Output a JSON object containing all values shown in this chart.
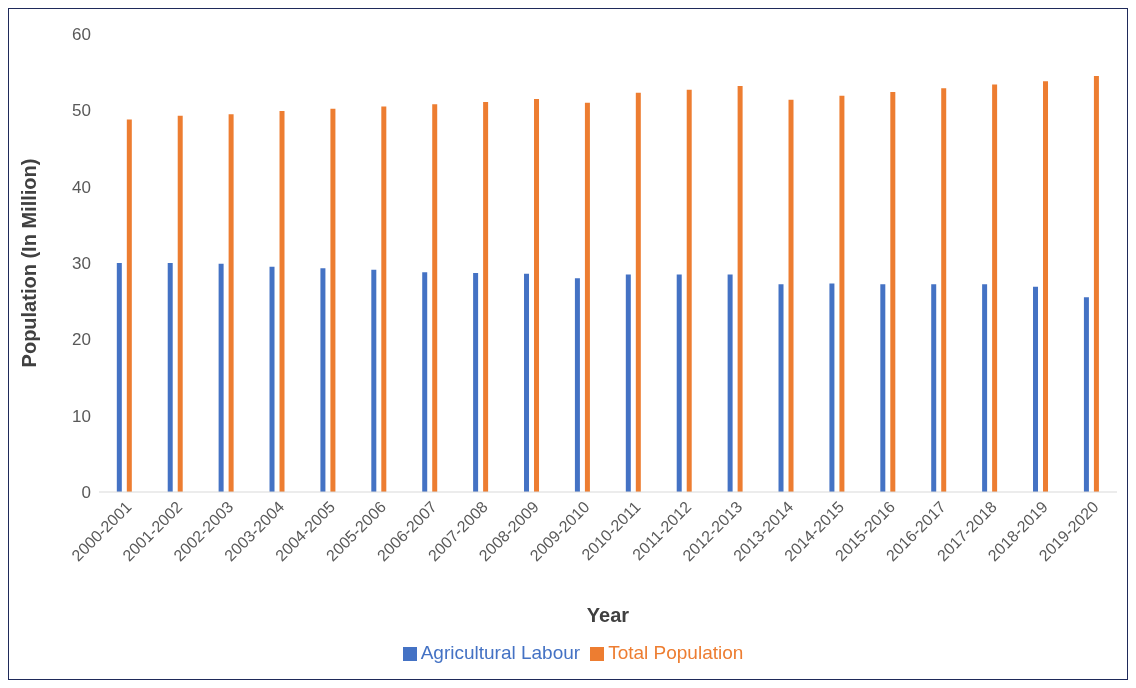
{
  "chart_data": {
    "type": "bar",
    "xlabel": "Year",
    "ylabel": "Population (In Million)",
    "categories": [
      "2000-2001",
      "2001-2002",
      "2002-2003",
      "2003-2004",
      "2004-2005",
      "2005-2006",
      "2006-2007",
      "2007-2008",
      "2008-2009",
      "2009-2010",
      "2010-2011",
      "2011-2012",
      "2012-2013",
      "2013-2014",
      "2014-2015",
      "2015-2016",
      "2016-2017",
      "2017-2018",
      "2018-2019",
      "2019-2020"
    ],
    "series": [
      {
        "name": "Agricultural Labour",
        "color": "#4472c4",
        "values": [
          30.0,
          30.0,
          29.9,
          29.5,
          29.3,
          29.1,
          28.8,
          28.7,
          28.6,
          28.0,
          28.5,
          28.5,
          28.5,
          27.2,
          27.3,
          27.2,
          27.2,
          27.2,
          26.9,
          25.5
        ]
      },
      {
        "name": "Total Population",
        "color": "#ed7d31",
        "values": [
          48.8,
          49.3,
          49.5,
          49.9,
          50.2,
          50.5,
          50.8,
          51.1,
          51.5,
          51.0,
          52.3,
          52.7,
          53.2,
          51.4,
          51.9,
          52.4,
          52.9,
          53.4,
          53.8,
          54.5
        ]
      }
    ],
    "ylim": [
      0,
      60
    ],
    "yticks": [
      0,
      10,
      20,
      30,
      40,
      50,
      60
    ],
    "grid": false,
    "legend": "bottom"
  }
}
